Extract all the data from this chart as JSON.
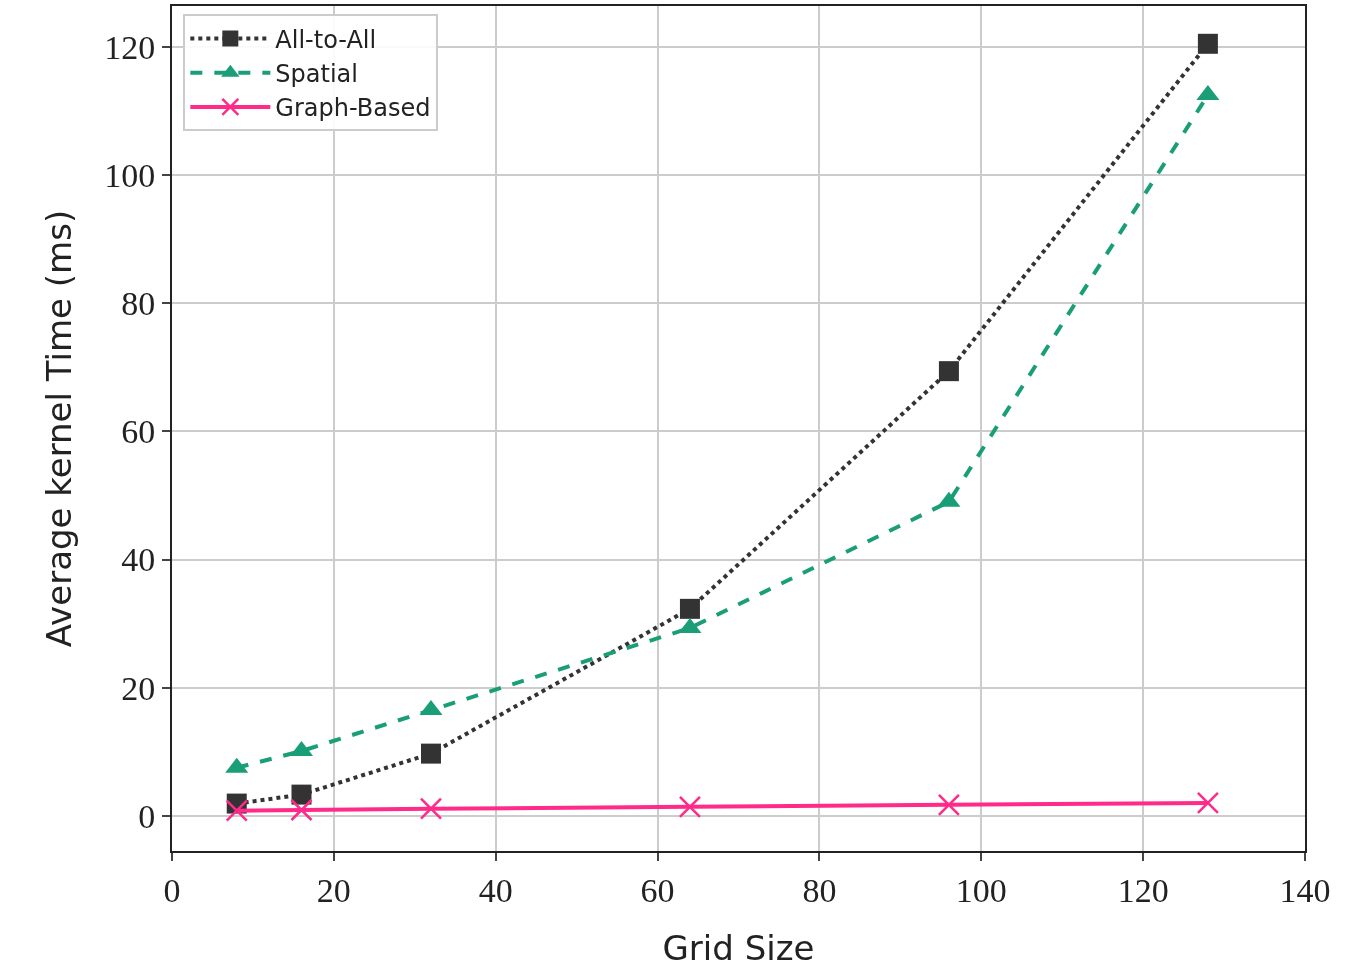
{
  "chart_data": {
    "type": "line",
    "xlabel": "Grid Size",
    "ylabel": "Average kernel Time (ms)",
    "x": [
      8,
      16,
      32,
      64,
      96,
      128
    ],
    "series": [
      {
        "name": "All-to-All",
        "color": "#333333",
        "marker": "square",
        "line_style": "dotted",
        "values": [
          1.9,
          3.3,
          9.7,
          32.3,
          69.4,
          120.5
        ]
      },
      {
        "name": "Spatial",
        "color": "#1a9e77",
        "marker": "triangle",
        "line_style": "dashed",
        "values": [
          7.5,
          10.1,
          16.5,
          29.3,
          49.0,
          112.5
        ]
      },
      {
        "name": "Graph-Based",
        "color": "#ff2a8a",
        "marker": "cross",
        "line_style": "solid",
        "values": [
          0.8,
          0.9,
          1.1,
          1.4,
          1.7,
          2.0
        ]
      }
    ],
    "xlim": [
      0,
      140
    ],
    "xticks": [
      0,
      20,
      40,
      60,
      80,
      100,
      120,
      140
    ],
    "ylim": [
      -5.5,
      126.4
    ],
    "yticks": [
      0,
      20,
      40,
      60,
      80,
      100,
      120
    ],
    "grid": true,
    "legend": "top left"
  }
}
